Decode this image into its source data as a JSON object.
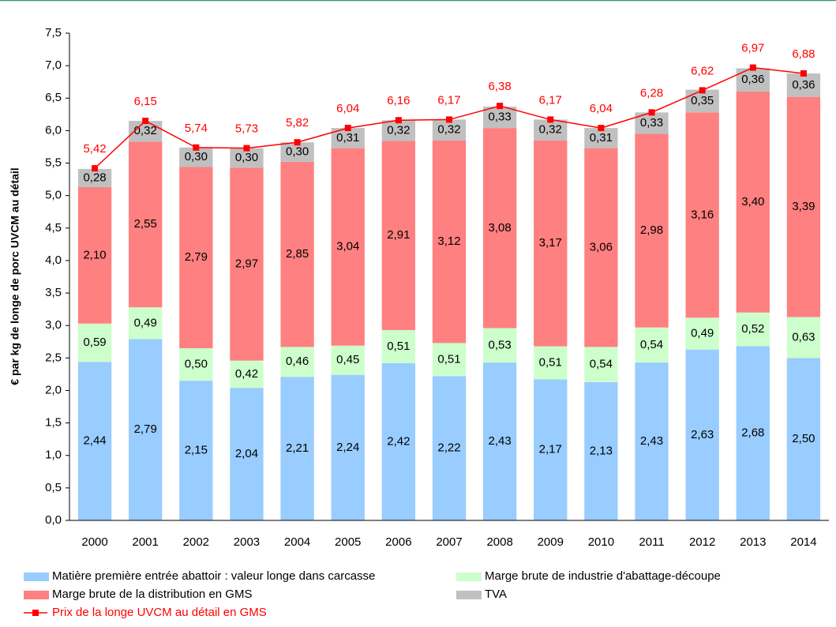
{
  "chart_data": {
    "type": "bar",
    "stacked": true,
    "y_label": "€ par kg de longe de porc UVCM au détail",
    "categories": [
      "2000",
      "2001",
      "2002",
      "2003",
      "2004",
      "2005",
      "2006",
      "2007",
      "2008",
      "2009",
      "2010",
      "2011",
      "2012",
      "2013",
      "2014"
    ],
    "series": [
      {
        "name": "Matière première entrée abattoir : valeur longe dans carcasse",
        "color": "#99ccff",
        "values": [
          2.44,
          2.79,
          2.15,
          2.04,
          2.21,
          2.24,
          2.42,
          2.22,
          2.43,
          2.17,
          2.13,
          2.43,
          2.63,
          2.68,
          2.5
        ],
        "value_labels": [
          "2,44",
          "2,79",
          "2,15",
          "2,04",
          "2,21",
          "2,24",
          "2,42",
          "2,22",
          "2,43",
          "2,17",
          "2,13",
          "2,43",
          "2,63",
          "2,68",
          "2,50"
        ]
      },
      {
        "name": "Marge brute de industrie d'abattage-découpe",
        "color": "#ccffcc",
        "values": [
          0.59,
          0.49,
          0.5,
          0.42,
          0.46,
          0.45,
          0.51,
          0.51,
          0.53,
          0.51,
          0.54,
          0.54,
          0.49,
          0.52,
          0.63
        ],
        "value_labels": [
          "0,59",
          "0,49",
          "0,50",
          "0,42",
          "0,46",
          "0,45",
          "0,51",
          "0,51",
          "0,53",
          "0,51",
          "0,54",
          "0,54",
          "0,49",
          "0,52",
          "0,63"
        ]
      },
      {
        "name": "Marge brute de la distribution en GMS",
        "color": "#ff8080",
        "values": [
          2.1,
          2.55,
          2.79,
          2.97,
          2.85,
          3.04,
          2.91,
          3.12,
          3.08,
          3.17,
          3.06,
          2.98,
          3.16,
          3.4,
          3.39
        ],
        "value_labels": [
          "2,10",
          "2,55",
          "2,79",
          "2,97",
          "2,85",
          "3,04",
          "2,91",
          "3,12",
          "3,08",
          "3,17",
          "3,06",
          "2,98",
          "3,16",
          "3,40",
          "3,39"
        ]
      },
      {
        "name": "TVA",
        "color": "#c0c0c0",
        "values": [
          0.28,
          0.32,
          0.3,
          0.3,
          0.3,
          0.31,
          0.32,
          0.32,
          0.33,
          0.32,
          0.31,
          0.33,
          0.35,
          0.36,
          0.36
        ],
        "value_labels": [
          "0,28",
          "0,32",
          "0,30",
          "0,30",
          "0,30",
          "0,31",
          "0,32",
          "0,32",
          "0,33",
          "0,32",
          "0,31",
          "0,33",
          "0,35",
          "0,36",
          "0,36"
        ]
      },
      {
        "name": "Prix de la longe UVCM au détail en GMS",
        "color": "#ff0000",
        "type": "line",
        "values": [
          5.42,
          6.15,
          5.74,
          5.73,
          5.82,
          6.04,
          6.16,
          6.17,
          6.38,
          6.17,
          6.04,
          6.28,
          6.62,
          6.97,
          6.88
        ],
        "value_labels": [
          "5,42",
          "6,15",
          "5,74",
          "5,73",
          "5,82",
          "6,04",
          "6,16",
          "6,17",
          "6,38",
          "6,17",
          "6,04",
          "6,28",
          "6,62",
          "6,97",
          "6,88"
        ]
      }
    ],
    "ylim": [
      0,
      7.5
    ],
    "yticks": [
      {
        "value": 0,
        "label": "0,0"
      },
      {
        "value": 0.5,
        "label": "0,5"
      },
      {
        "value": 1,
        "label": "1,0"
      },
      {
        "value": 1.5,
        "label": "1,5"
      },
      {
        "value": 2,
        "label": "2,0"
      },
      {
        "value": 2.5,
        "label": "2,5"
      },
      {
        "value": 3,
        "label": "3,0"
      },
      {
        "value": 3.5,
        "label": "3,5"
      },
      {
        "value": 4,
        "label": "4,0"
      },
      {
        "value": 4.5,
        "label": "4,5"
      },
      {
        "value": 5,
        "label": "5,0"
      },
      {
        "value": 5.5,
        "label": "5,5"
      },
      {
        "value": 6,
        "label": "6,0"
      },
      {
        "value": 6.5,
        "label": "6,5"
      },
      {
        "value": 7,
        "label": "7,0"
      },
      {
        "value": 7.5,
        "label": "7,5"
      }
    ],
    "grid": false
  }
}
